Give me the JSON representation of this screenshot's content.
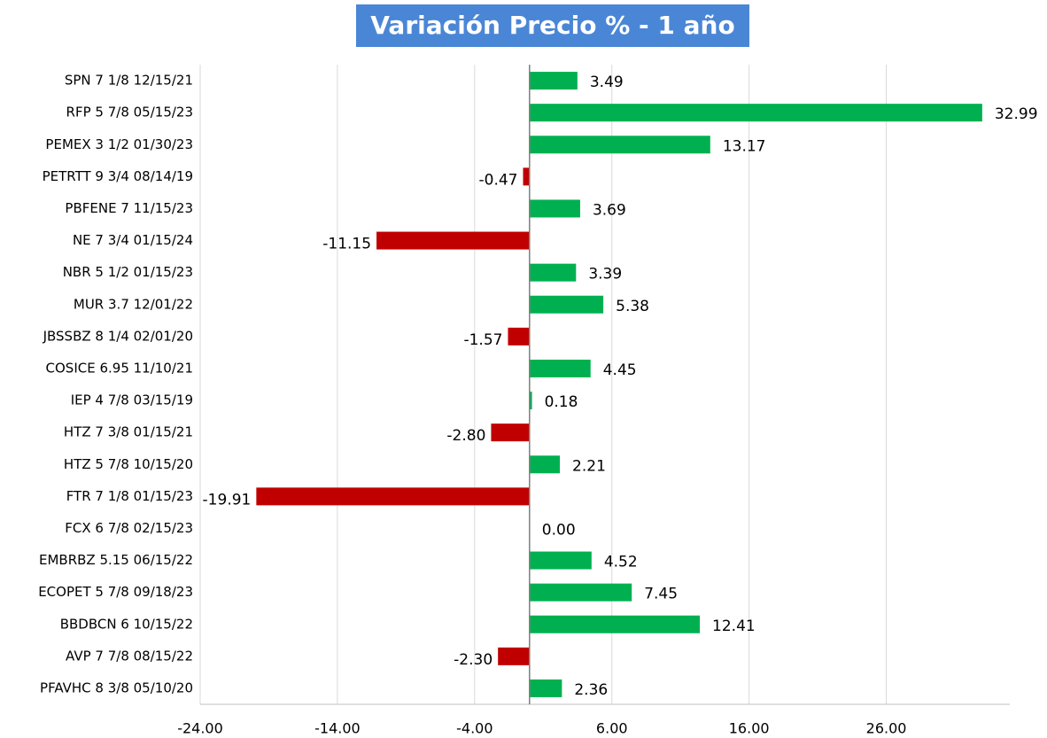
{
  "chart_data": {
    "type": "bar",
    "orientation": "horizontal",
    "title": "Variación Precio % - 1 año",
    "categories": [
      "SPN 7 1/8 12/15/21",
      "RFP 5 7/8 05/15/23",
      "PEMEX 3 1/2 01/30/23",
      "PETRTT 9 3/4 08/14/19",
      "PBFENE 7 11/15/23",
      "NE 7 3/4 01/15/24",
      "NBR 5 1/2 01/15/23",
      "MUR 3.7 12/01/22",
      "JBSSBZ 8 1/4 02/01/20",
      "COSICE 6.95 11/10/21",
      "IEP 4 7/8 03/15/19",
      "HTZ 7 3/8 01/15/21",
      "HTZ 5 7/8 10/15/20",
      "FTR 7 1/8 01/15/23",
      "FCX 6 7/8 02/15/23",
      "EMBRBZ 5.15 06/15/22",
      "ECOPET 5 7/8 09/18/23",
      "BBDBCN 6 10/15/22",
      "AVP 7 7/8 08/15/22",
      "PFAVHC 8 3/8 05/10/20"
    ],
    "values": [
      3.49,
      32.99,
      13.17,
      -0.47,
      3.69,
      -11.15,
      3.39,
      5.38,
      -1.57,
      4.45,
      0.18,
      -2.8,
      2.21,
      -19.91,
      0,
      4.52,
      7.45,
      12.41,
      -2.3,
      2.36
    ],
    "value_labels": [
      "3.49",
      "32.99",
      "13.17",
      "-0.47",
      "3.69",
      "-11.15",
      "3.39",
      "5.38",
      "-1.57",
      "4.45",
      "0.18",
      "-2.80",
      "2.21",
      "-19.91",
      "0.00",
      "4.52",
      "7.45",
      "12.41",
      "-2.30",
      "2.36"
    ],
    "positive_color": "#00b050",
    "negative_color": "#c00000",
    "xlim": [
      -24,
      35
    ],
    "xticks": [
      {
        "value": -24,
        "label": "-24.00"
      },
      {
        "value": -14,
        "label": "-14.00"
      },
      {
        "value": -4,
        "label": "-4.00"
      },
      {
        "value": 6,
        "label": "6.00"
      },
      {
        "value": 16,
        "label": "16.00"
      },
      {
        "value": 26,
        "label": "26.00"
      }
    ],
    "grid": true
  }
}
